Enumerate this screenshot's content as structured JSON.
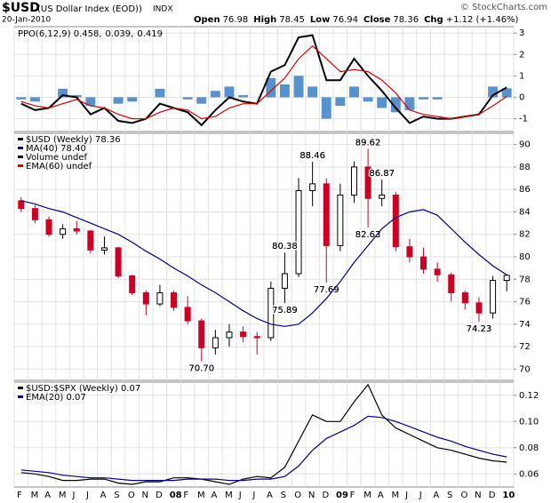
{
  "header": {
    "symbol": "$USD",
    "name": "(US Dollar Index (EOD))",
    "exchange": "INDX",
    "date": "20-Jan-2010",
    "credit": "© StockCharts.com",
    "quote": [
      {
        "label": "Open",
        "value": "76.98"
      },
      {
        "label": "High",
        "value": "78.45"
      },
      {
        "label": "Low",
        "value": "76.94"
      },
      {
        "label": "Close",
        "value": "78.36"
      },
      {
        "label": "Chg",
        "value": "+1.12 (+1.46%)"
      }
    ]
  },
  "chart_data": [
    {
      "type": "line",
      "legend": [
        {
          "text": "PPO(6,12,9) 0.458,",
          "color": "#000000"
        },
        {
          "text": "0.039,",
          "color": "#dd0000"
        },
        {
          "text": "0.419",
          "color": "#3a8fb7"
        }
      ],
      "ylim": [
        -1.6,
        3.3
      ],
      "yticks": [
        3,
        2,
        1,
        0,
        -1
      ],
      "grid": true,
      "series": [
        {
          "type": "bar",
          "color": "#3b7fc4",
          "values": [
            -0.1,
            -0.2,
            0.0,
            0.4,
            0.1,
            -0.4,
            0.0,
            -0.3,
            -0.2,
            0.0,
            0.4,
            0.0,
            -0.1,
            -0.3,
            0.3,
            0.5,
            0.1,
            0.0,
            0.9,
            0.6,
            1.0,
            0.5,
            -1.0,
            -0.4,
            0.5,
            -0.2,
            -0.5,
            -0.7,
            -0.6,
            -0.1,
            -0.1,
            0.0,
            0.0,
            0.0,
            0.5,
            0.419
          ]
        },
        {
          "type": "line",
          "color": "#000000",
          "values": [
            -0.3,
            -0.6,
            -0.5,
            0.1,
            0.0,
            -0.8,
            -0.5,
            -1.1,
            -1.2,
            -1.0,
            -0.3,
            -0.5,
            -0.7,
            -1.3,
            -0.6,
            0.0,
            -0.2,
            -0.3,
            1.2,
            1.5,
            2.8,
            2.9,
            0.8,
            0.8,
            1.8,
            1.0,
            0.3,
            -0.5,
            -1.2,
            -0.9,
            -1.0,
            -1.0,
            -0.9,
            -0.8,
            0.1,
            0.458
          ]
        },
        {
          "type": "line",
          "color": "#dd0000",
          "values": [
            -0.2,
            -0.4,
            -0.5,
            -0.3,
            -0.1,
            -0.4,
            -0.5,
            -0.8,
            -1.0,
            -1.0,
            -0.7,
            -0.5,
            -0.6,
            -1.0,
            -0.9,
            -0.5,
            -0.3,
            -0.3,
            0.3,
            0.9,
            1.8,
            2.4,
            1.8,
            1.2,
            1.3,
            1.2,
            0.8,
            0.2,
            -0.6,
            -0.8,
            -0.9,
            -1.0,
            -0.9,
            -0.8,
            -0.4,
            0.039
          ]
        }
      ]
    },
    {
      "type": "candlestick",
      "legend": [
        {
          "text": "$USD (Weekly) 78.36",
          "color": "#000000"
        },
        {
          "text": "MA(40) 78.40",
          "color": "#00008b"
        },
        {
          "text": "Volume undef",
          "color": "#000000"
        },
        {
          "text": "EMA(60) undef",
          "color": "#dd0000"
        }
      ],
      "ylim": [
        69,
        91
      ],
      "yticks": [
        70,
        72,
        74,
        76,
        78,
        80,
        82,
        84,
        86,
        88,
        90
      ],
      "grid": true,
      "up_color": "#000000",
      "down_color": "#cc0022",
      "open": [
        85.0,
        84.3,
        83.3,
        82.0,
        82.5,
        82.3,
        80.6,
        80.8,
        78.3,
        76.8,
        75.8,
        76.8,
        75.5,
        74.3,
        71.9,
        72.8,
        73.3,
        72.9,
        72.8,
        77.2,
        78.5,
        85.9,
        86.5,
        81.0,
        85.5,
        88.0,
        85.2,
        85.5,
        80.9,
        80.0,
        78.9,
        78.4,
        76.8,
        75.9,
        75.0,
        77.9
      ],
      "high": [
        85.3,
        84.6,
        83.6,
        82.9,
        83.2,
        82.4,
        81.8,
        80.9,
        78.4,
        77.0,
        77.5,
        77.0,
        76.5,
        74.5,
        73.5,
        74.0,
        73.8,
        73.3,
        77.8,
        80.38,
        87.0,
        88.46,
        87.0,
        86.5,
        88.5,
        89.62,
        86.87,
        85.8,
        81.6,
        80.8,
        79.5,
        78.6,
        77.0,
        76.4,
        78.3,
        78.45
      ],
      "low": [
        84.0,
        83.0,
        81.8,
        81.6,
        82.0,
        80.3,
        80.2,
        78.1,
        76.6,
        74.8,
        75.6,
        75.2,
        74.0,
        70.7,
        71.3,
        72.0,
        72.4,
        71.3,
        72.5,
        75.89,
        78.2,
        84.5,
        77.69,
        80.5,
        84.8,
        82.63,
        84.5,
        80.5,
        79.5,
        78.5,
        77.8,
        76.0,
        75.3,
        74.23,
        74.5,
        76.94
      ],
      "close": [
        84.3,
        83.3,
        82.0,
        82.5,
        82.3,
        80.6,
        80.8,
        78.3,
        76.8,
        75.8,
        76.8,
        75.5,
        74.3,
        71.9,
        72.8,
        73.3,
        72.9,
        72.8,
        77.2,
        78.5,
        85.9,
        86.5,
        81.0,
        85.5,
        88.0,
        85.2,
        85.5,
        80.9,
        80.0,
        78.9,
        78.4,
        76.8,
        75.9,
        75.0,
        77.9,
        78.36
      ],
      "series": [
        {
          "type": "line",
          "color": "#00008b",
          "values": [
            85,
            84.7,
            84.3,
            84,
            83.5,
            83,
            82.5,
            82,
            81.3,
            80.5,
            79.8,
            79,
            78.3,
            77.5,
            76.8,
            76,
            75.2,
            74.5,
            74,
            73.8,
            74,
            75,
            76.3,
            77.8,
            79.5,
            81,
            82.5,
            83.5,
            84,
            84.2,
            83.7,
            82.5,
            81.3,
            80.2,
            79.2,
            78.4
          ]
        }
      ],
      "annotations": [
        {
          "index": 13,
          "value": 70.7,
          "label": "70.70"
        },
        {
          "index": 19,
          "value": 80.38,
          "label": "80.38"
        },
        {
          "index": 19,
          "value": 75.89,
          "label": "75.89"
        },
        {
          "index": 21,
          "value": 88.46,
          "label": "88.46"
        },
        {
          "index": 22,
          "value": 77.69,
          "label": "77.69"
        },
        {
          "index": 25,
          "value": 89.62,
          "label": "89.62"
        },
        {
          "index": 25,
          "value": 82.63,
          "label": "82.63"
        },
        {
          "index": 26,
          "value": 86.87,
          "label": "86.87"
        },
        {
          "index": 33,
          "value": 74.23,
          "label": "74.23"
        }
      ]
    },
    {
      "type": "line",
      "legend": [
        {
          "text": "$USD:$SPX (Weekly) 0.07",
          "color": "#000000"
        },
        {
          "text": "EMA(20) 0.07",
          "color": "#00008b"
        }
      ],
      "ylim": [
        0.05,
        0.13
      ],
      "yticks": [
        0.06,
        0.08,
        {
          "value": 0.1,
          "label": "0.10"
        },
        0.12
      ],
      "grid": true,
      "categories": [
        "F",
        "M",
        "A",
        "M",
        "J",
        "J",
        "A",
        "S",
        "O",
        "N",
        "D",
        "08",
        "F",
        "M",
        "A",
        "M",
        "J",
        "J",
        "A",
        "S",
        "O",
        "N",
        "D",
        "09",
        "F",
        "M",
        "A",
        "M",
        "J",
        "J",
        "A",
        "S",
        "O",
        "N",
        "D",
        "10"
      ],
      "series": [
        {
          "type": "line",
          "color": "#000000",
          "values": [
            0.061,
            0.06,
            0.058,
            0.055,
            0.055,
            0.056,
            0.056,
            0.053,
            0.052,
            0.054,
            0.054,
            0.057,
            0.057,
            0.056,
            0.054,
            0.052,
            0.056,
            0.058,
            0.057,
            0.065,
            0.085,
            0.105,
            0.1,
            0.1,
            0.115,
            0.128,
            0.105,
            0.095,
            0.09,
            0.085,
            0.08,
            0.078,
            0.075,
            0.072,
            0.07,
            0.069
          ]
        },
        {
          "type": "line",
          "color": "#00008b",
          "values": [
            0.063,
            0.062,
            0.061,
            0.059,
            0.058,
            0.057,
            0.057,
            0.056,
            0.055,
            0.055,
            0.055,
            0.055,
            0.056,
            0.056,
            0.056,
            0.055,
            0.055,
            0.056,
            0.056,
            0.058,
            0.066,
            0.078,
            0.087,
            0.092,
            0.097,
            0.104,
            0.103,
            0.1,
            0.096,
            0.092,
            0.088,
            0.085,
            0.081,
            0.078,
            0.075,
            0.073
          ]
        }
      ]
    }
  ]
}
